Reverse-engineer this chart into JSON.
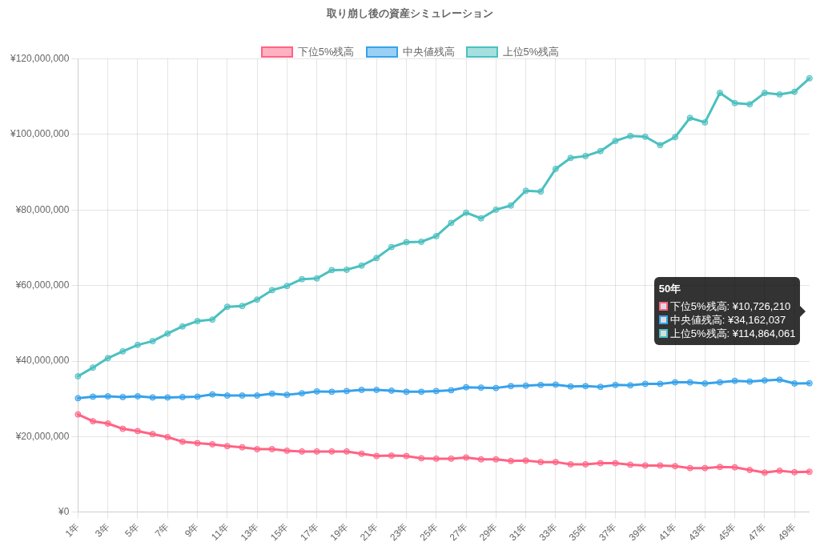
{
  "chart_data": {
    "type": "line",
    "title": "取り崩し後の資産シミュレーション",
    "categories": [
      "1年",
      null,
      "3年",
      null,
      "5年",
      null,
      "7年",
      null,
      "9年",
      null,
      "11年",
      null,
      "13年",
      null,
      "15年",
      null,
      "17年",
      null,
      "19年",
      null,
      "21年",
      null,
      "23年",
      null,
      "25年",
      null,
      "27年",
      null,
      "29年",
      null,
      "31年",
      null,
      "33年",
      null,
      "35年",
      null,
      "37年",
      null,
      "39年",
      null,
      "41年",
      null,
      "43年",
      null,
      "45年",
      null,
      "47年",
      null,
      "49年",
      null
    ],
    "series": [
      {
        "name": "下位5%残高",
        "color": "#ff6384",
        "values": [
          25900000,
          24100000,
          23500000,
          22100000,
          21500000,
          20700000,
          19900000,
          18700000,
          18300000,
          18000000,
          17500000,
          17200000,
          16700000,
          16700000,
          16300000,
          16100000,
          16100000,
          16100000,
          16100000,
          15500000,
          14900000,
          15000000,
          14900000,
          14300000,
          14200000,
          14200000,
          14500000,
          14000000,
          14000000,
          13600000,
          13700000,
          13300000,
          13300000,
          12700000,
          12700000,
          13000000,
          13000000,
          12600000,
          12400000,
          12400000,
          12200000,
          11700000,
          11700000,
          12000000,
          11900000,
          11200000,
          10500000,
          11000000,
          10600000,
          10726210
        ]
      },
      {
        "name": "中央値残高",
        "color": "#36a2eb",
        "values": [
          30200000,
          30600000,
          30700000,
          30500000,
          30700000,
          30400000,
          30400000,
          30500000,
          30600000,
          31200000,
          30900000,
          30900000,
          30900000,
          31400000,
          31100000,
          31500000,
          32000000,
          31900000,
          32100000,
          32400000,
          32400000,
          32200000,
          31900000,
          31900000,
          32100000,
          32300000,
          33100000,
          33000000,
          32900000,
          33400000,
          33500000,
          33700000,
          33800000,
          33300000,
          33400000,
          33200000,
          33700000,
          33600000,
          34000000,
          34000000,
          34400000,
          34400000,
          34100000,
          34400000,
          34800000,
          34600000,
          34900000,
          35100000,
          34100000,
          34162037
        ]
      },
      {
        "name": "上位5%残高",
        "color": "#4bc0c0",
        "values": [
          36000000,
          38300000,
          40800000,
          42600000,
          44300000,
          45300000,
          47300000,
          49200000,
          50600000,
          51000000,
          54400000,
          54600000,
          56300000,
          58800000,
          59900000,
          61700000,
          61900000,
          64100000,
          64200000,
          65300000,
          67300000,
          70200000,
          71500000,
          71600000,
          73100000,
          76600000,
          79300000,
          77800000,
          80100000,
          81200000,
          85100000,
          84900000,
          90900000,
          93800000,
          94300000,
          95600000,
          98300000,
          99600000,
          99400000,
          97200000,
          99300000,
          104400000,
          103200000,
          111000000,
          108300000,
          108000000,
          111000000,
          110600000,
          111300000,
          114864061
        ]
      }
    ],
    "ylim": [
      0,
      120000000
    ],
    "yticks": [
      {
        "value": 0,
        "label": "¥0"
      },
      {
        "value": 20000000,
        "label": "¥20,000,000"
      },
      {
        "value": 40000000,
        "label": "¥40,000,000"
      },
      {
        "value": 60000000,
        "label": "¥60,000,000"
      },
      {
        "value": 80000000,
        "label": "¥80,000,000"
      },
      {
        "value": 100000000,
        "label": "¥100,000,000"
      },
      {
        "value": 120000000,
        "label": "¥120,000,000"
      }
    ],
    "grid": true,
    "legend": "top",
    "marker": "circle",
    "line_style": "solid",
    "annotations": [
      "50年",
      "下位5%残高: ¥10,726,210",
      "中央値残高: ¥34,162,037",
      "上位5%残高: ¥114,864,061"
    ]
  }
}
